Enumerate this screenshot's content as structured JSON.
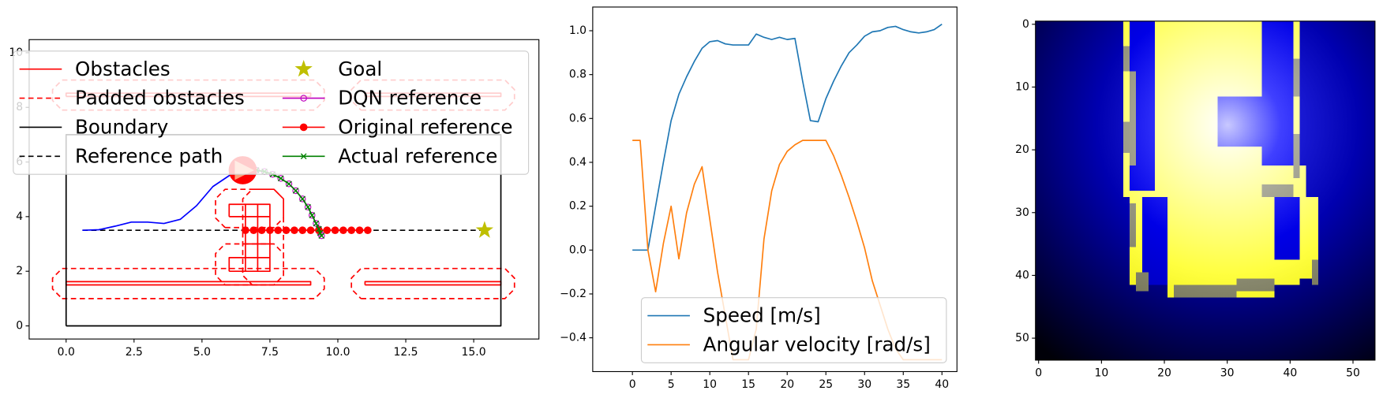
{
  "chart_data": [
    {
      "type": "line",
      "xlim": [
        -1.36,
        17.4
      ],
      "ylim": [
        -0.48,
        10.48
      ],
      "xticks": [
        {
          "value": 0,
          "label": "0.0"
        },
        {
          "value": 2.5,
          "label": "2.5"
        },
        {
          "value": 5,
          "label": "5.0"
        },
        {
          "value": 7.5,
          "label": "7.5"
        },
        {
          "value": 10,
          "label": "10.0"
        },
        {
          "value": 12.5,
          "label": "12.5"
        },
        {
          "value": 15,
          "label": "15.0"
        }
      ],
      "yticks": [
        0,
        2,
        4,
        6,
        8,
        10
      ],
      "legend": "upper left",
      "legend_columns": 2,
      "series": [
        {
          "name": "Obstacles",
          "color": "#ff0000",
          "linestyle": "solid",
          "x": [
            0,
            9,
            9,
            0,
            0,
            null,
            11,
            16,
            16,
            11,
            11,
            null,
            0,
            9,
            9,
            0,
            0,
            null,
            11,
            16,
            16,
            11,
            11,
            null,
            6.6,
            7.5,
            7.5,
            6.6,
            6.6,
            null,
            6.0,
            6.6,
            6.6,
            6.0,
            6.0,
            null,
            6.0,
            6.6,
            6.6,
            6.0,
            6.0,
            null,
            6.6,
            7.5,
            null,
            6.6,
            7.5,
            null,
            6.6,
            7.5,
            null,
            6.6,
            7.5,
            null,
            7.05,
            7.05
          ],
          "y": [
            1.5,
            1.5,
            1.62,
            1.62,
            1.5,
            null,
            1.5,
            1.5,
            1.62,
            1.62,
            1.5,
            null,
            8.4,
            8.4,
            8.52,
            8.52,
            8.4,
            null,
            8.4,
            8.4,
            8.52,
            8.52,
            8.4,
            null,
            2.0,
            2.0,
            4.45,
            4.45,
            2.0,
            null,
            4.0,
            4.0,
            4.45,
            4.45,
            4.0,
            null,
            2.0,
            2.0,
            2.5,
            2.5,
            2.0,
            null,
            2.5,
            2.5,
            null,
            3.0,
            3.0,
            null,
            3.5,
            3.5,
            null,
            4.0,
            4.0,
            null,
            2.0,
            4.45
          ]
        },
        {
          "name": "Padded obstacles",
          "color": "#ff0000",
          "linestyle": "dashed",
          "x": [
            -0.15,
            9.15,
            9.5,
            9.5,
            9.15,
            -0.15,
            -0.5,
            -0.5,
            -0.15,
            null,
            10.85,
            16.15,
            16.5,
            16.5,
            16.15,
            10.85,
            10.5,
            10.5,
            10.85,
            null,
            -0.15,
            9.15,
            9.5,
            9.5,
            9.15,
            -0.15,
            -0.5,
            -0.5,
            -0.15,
            null,
            10.85,
            16.15,
            16.5,
            16.5,
            16.15,
            10.85,
            10.5,
            10.5,
            10.85,
            null,
            5.85,
            7.65,
            8.0,
            8.0,
            7.65,
            5.85,
            5.5,
            5.5,
            5.85,
            null,
            5.85,
            7.65,
            8.0,
            8.0,
            7.65,
            5.85,
            5.5,
            5.5,
            5.85,
            null,
            6.85,
            7.65,
            8.0,
            8.0,
            7.65,
            6.85,
            6.5,
            6.5,
            6.85
          ],
          "y": [
            1.0,
            1.0,
            1.35,
            1.75,
            2.1,
            2.1,
            1.75,
            1.35,
            1.0,
            null,
            1.0,
            1.0,
            1.35,
            1.75,
            2.1,
            2.1,
            1.75,
            1.35,
            1.0,
            null,
            7.9,
            7.9,
            8.25,
            8.65,
            9.0,
            9.0,
            8.65,
            8.25,
            7.9,
            null,
            7.9,
            7.9,
            8.25,
            8.65,
            9.0,
            9.0,
            8.65,
            8.25,
            7.9,
            null,
            3.6,
            3.6,
            3.95,
            4.65,
            5.0,
            5.0,
            4.65,
            3.95,
            3.6,
            null,
            1.5,
            1.5,
            1.85,
            2.65,
            3.0,
            3.0,
            2.65,
            1.85,
            1.5,
            null,
            1.5,
            1.5,
            1.85,
            4.65,
            5.0,
            5.0,
            4.65,
            1.85,
            1.5
          ]
        },
        {
          "name": "Boundary",
          "color": "#000000",
          "linestyle": "solid",
          "x": [
            0,
            16,
            16,
            0,
            0
          ],
          "y": [
            0,
            0,
            7,
            7,
            0
          ]
        },
        {
          "name": "Reference path",
          "color": "#000000",
          "linestyle": "dashed",
          "x": [
            0.6,
            15.4
          ],
          "y": [
            3.5,
            3.5
          ]
        },
        {
          "name": "Goal",
          "color": "#bfbf00",
          "linestyle": "none",
          "marker": "star",
          "x": [
            15.4
          ],
          "y": [
            3.5
          ]
        },
        {
          "name": "DQN reference",
          "color": "#bf00bf",
          "linestyle": "solid",
          "marker": "o-open",
          "x": [
            7.0,
            7.3,
            7.6,
            7.9,
            8.2,
            8.45,
            8.7,
            8.9,
            9.05,
            9.2,
            9.3,
            9.35,
            9.4
          ],
          "y": [
            5.7,
            5.65,
            5.55,
            5.4,
            5.2,
            4.95,
            4.65,
            4.35,
            4.05,
            3.75,
            3.55,
            3.4,
            3.3
          ]
        },
        {
          "name": "Original reference",
          "color": "#ff0000",
          "linestyle": "solid",
          "marker": "o",
          "x": [
            6.6,
            6.9,
            7.2,
            7.5,
            7.8,
            8.1,
            8.4,
            8.7,
            9.0,
            9.3,
            9.6,
            9.9,
            10.2,
            10.5,
            10.8,
            11.1
          ],
          "y": [
            3.5,
            3.5,
            3.5,
            3.5,
            3.5,
            3.5,
            3.5,
            3.5,
            3.5,
            3.5,
            3.5,
            3.5,
            3.5,
            3.5,
            3.5,
            3.5
          ]
        },
        {
          "name": "Actual reference",
          "color": "#008000",
          "linestyle": "solid",
          "marker": "x",
          "x": [
            7.0,
            7.3,
            7.6,
            7.9,
            8.2,
            8.45,
            8.7,
            8.9,
            9.05,
            9.2,
            9.3,
            9.35,
            9.4
          ],
          "y": [
            5.7,
            5.65,
            5.55,
            5.4,
            5.2,
            4.95,
            4.65,
            4.35,
            4.05,
            3.75,
            3.55,
            3.4,
            3.3
          ]
        },
        {
          "color": "#0000ff",
          "linestyle": "solid",
          "x": [
            0.6,
            1.2,
            1.8,
            2.4,
            3.0,
            3.6,
            4.2,
            4.8,
            5.4,
            6.0,
            6.3
          ],
          "y": [
            3.5,
            3.52,
            3.65,
            3.8,
            3.8,
            3.75,
            3.9,
            4.4,
            5.1,
            5.5,
            5.65
          ]
        },
        {
          "color": "#ff0000",
          "linestyle": "none",
          "marker": "robot",
          "x": [
            6.5
          ],
          "y": [
            5.7
          ]
        }
      ]
    },
    {
      "type": "line",
      "xlim": [
        -5.13,
        41.94
      ],
      "ylim": [
        -0.554,
        1.108
      ],
      "xticks": [
        0,
        5,
        10,
        15,
        20,
        25,
        30,
        35,
        40
      ],
      "yticks": [
        {
          "value": -0.4,
          "label": "−0.4"
        },
        {
          "value": -0.2,
          "label": "−0.2"
        },
        {
          "value": 0,
          "label": "0.0"
        },
        {
          "value": 0.2,
          "label": "0.2"
        },
        {
          "value": 0.4,
          "label": "0.4"
        },
        {
          "value": 0.6,
          "label": "0.6"
        },
        {
          "value": 0.8,
          "label": "0.8"
        },
        {
          "value": 1.0,
          "label": "1.0"
        }
      ],
      "legend": "lower right",
      "legend_columns": 1,
      "x": [
        0,
        1,
        2,
        3,
        4,
        5,
        6,
        7,
        8,
        9,
        10,
        11,
        12,
        13,
        14,
        15,
        16,
        17,
        18,
        19,
        20,
        21,
        22,
        23,
        24,
        25,
        26,
        27,
        28,
        29,
        30,
        31,
        32,
        33,
        34,
        35,
        36,
        37,
        38,
        39,
        40
      ],
      "series": [
        {
          "name": "Speed [m/s]",
          "color": "#1f77b4",
          "linestyle": "solid",
          "values": [
            0,
            0,
            0,
            0.2,
            0.4,
            0.59,
            0.71,
            0.79,
            0.86,
            0.92,
            0.95,
            0.955,
            0.94,
            0.935,
            0.935,
            0.935,
            0.985,
            0.97,
            0.96,
            0.97,
            0.96,
            0.965,
            0.77,
            0.59,
            0.585,
            0.69,
            0.77,
            0.84,
            0.9,
            0.935,
            0.975,
            0.995,
            1.0,
            1.015,
            1.02,
            1.005,
            0.995,
            0.99,
            0.995,
            1.005,
            1.03
          ]
        },
        {
          "name": "Angular velocity [rad/s]",
          "color": "#ff7f0e",
          "linestyle": "solid",
          "values": [
            0.5,
            0.5,
            0.0,
            -0.19,
            0.03,
            0.2,
            -0.04,
            0.17,
            0.3,
            0.38,
            0.14,
            -0.1,
            -0.3,
            -0.5,
            -0.5,
            -0.5,
            -0.36,
            0.05,
            0.27,
            0.39,
            0.45,
            0.48,
            0.5,
            0.5,
            0.5,
            0.5,
            0.43,
            0.34,
            0.24,
            0.13,
            0.01,
            -0.14,
            -0.25,
            -0.36,
            -0.45,
            -0.5,
            -0.5,
            -0.5,
            -0.5,
            -0.5,
            -0.5
          ]
        }
      ]
    },
    {
      "type": "image",
      "xlim": [
        -0.5,
        53.5
      ],
      "ylim": [
        53.5,
        -0.5
      ],
      "xticks": [
        0,
        10,
        20,
        30,
        40,
        50
      ],
      "yticks": [
        0,
        10,
        20,
        30,
        40,
        50
      ],
      "cells": [
        {
          "rows": [
            0,
            53
          ],
          "cols": [
            0,
            53
          ],
          "value": 0
        },
        {
          "rows": [
            0,
            26
          ],
          "cols": [
            19,
            35
          ],
          "value": 1
        },
        {
          "rows": [
            0,
            27
          ],
          "cols": [
            14,
            14
          ],
          "value": 1
        },
        {
          "rows": [
            0,
            27
          ],
          "cols": [
            41,
            41
          ],
          "value": 1
        },
        {
          "rows": [
            23,
            27
          ],
          "cols": [
            15,
            42
          ],
          "value": 1
        },
        {
          "rows": [
            28,
            43
          ],
          "cols": [
            21,
            37
          ],
          "value": 1
        },
        {
          "rows": [
            28,
            41
          ],
          "cols": [
            15,
            16
          ],
          "value": 1
        },
        {
          "rows": [
            28,
            40
          ],
          "cols": [
            42,
            44
          ],
          "value": 1
        },
        {
          "rows": [
            38,
            41
          ],
          "cols": [
            38,
            41
          ],
          "value": 1
        },
        {
          "rows": [
            0,
            26
          ],
          "cols": [
            15,
            18
          ],
          "value": 0.2
        },
        {
          "rows": [
            0,
            22
          ],
          "cols": [
            36,
            40
          ],
          "value": 0.2
        },
        {
          "rows": [
            12,
            14
          ],
          "cols": [
            29,
            35
          ],
          "value": 0.2
        },
        {
          "rows": [
            15,
            19
          ],
          "cols": [
            29,
            40
          ],
          "value": 0.2
        },
        {
          "rows": [
            28,
            41
          ],
          "cols": [
            17,
            20
          ],
          "value": 0.2
        },
        {
          "rows": [
            28,
            37
          ],
          "cols": [
            38,
            41
          ],
          "value": 0.2
        },
        {
          "rows": [
            4,
            7
          ],
          "cols": [
            14,
            14
          ],
          "value": 0.5
        },
        {
          "rows": [
            16,
            20
          ],
          "cols": [
            14,
            14
          ],
          "value": 0.5
        },
        {
          "rows": [
            8,
            22
          ],
          "cols": [
            15,
            15
          ],
          "value": 0.5
        },
        {
          "rows": [
            6,
            11
          ],
          "cols": [
            41,
            41
          ],
          "value": 0.5
        },
        {
          "rows": [
            18,
            24
          ],
          "cols": [
            41,
            41
          ],
          "value": 0.5
        },
        {
          "rows": [
            29,
            35
          ],
          "cols": [
            15,
            15
          ],
          "value": 0.5
        },
        {
          "rows": [
            40,
            42
          ],
          "cols": [
            16,
            17
          ],
          "value": 0.5
        },
        {
          "rows": [
            42,
            43
          ],
          "cols": [
            22,
            31
          ],
          "value": 0.5
        },
        {
          "rows": [
            41,
            42
          ],
          "cols": [
            32,
            37
          ],
          "value": 0.5
        },
        {
          "rows": [
            38,
            41
          ],
          "cols": [
            44,
            44
          ],
          "value": 0.5
        },
        {
          "rows": [
            26,
            27
          ],
          "cols": [
            36,
            40
          ],
          "value": 0.5
        }
      ]
    }
  ]
}
